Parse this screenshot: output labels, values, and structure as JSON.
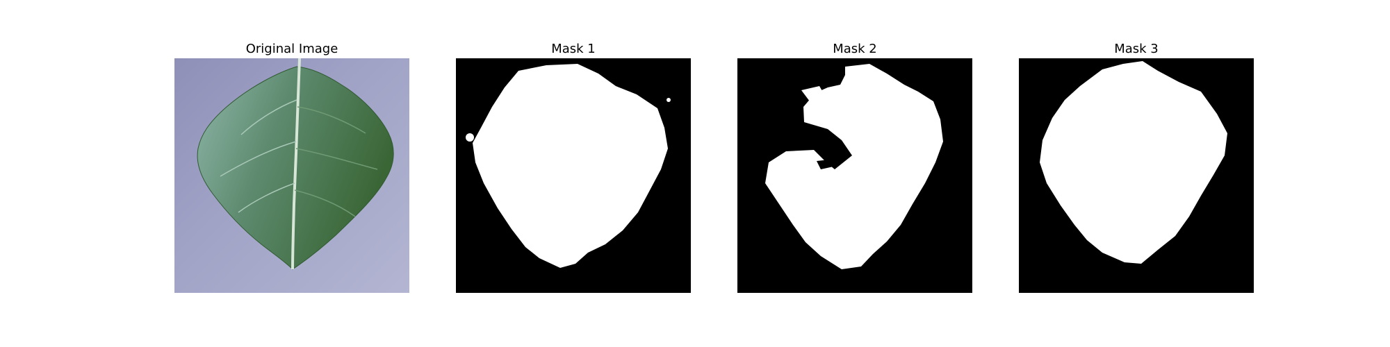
{
  "panels": [
    {
      "title": "Original Image",
      "kind": "photo",
      "subject": "leaf-photo"
    },
    {
      "title": "Mask 1",
      "kind": "mask",
      "subject": "leaf-mask"
    },
    {
      "title": "Mask 2",
      "kind": "mask",
      "subject": "leaf-mask-partial"
    },
    {
      "title": "Mask 3",
      "kind": "mask",
      "subject": "leaf-mask"
    }
  ],
  "colors": {
    "background": "#ffffff",
    "mask_background": "#000000",
    "mask_foreground": "#ffffff",
    "photo_background": "#9a9cc0",
    "leaf_light": "#7aa89a",
    "leaf_dark": "#3f6a3e"
  }
}
